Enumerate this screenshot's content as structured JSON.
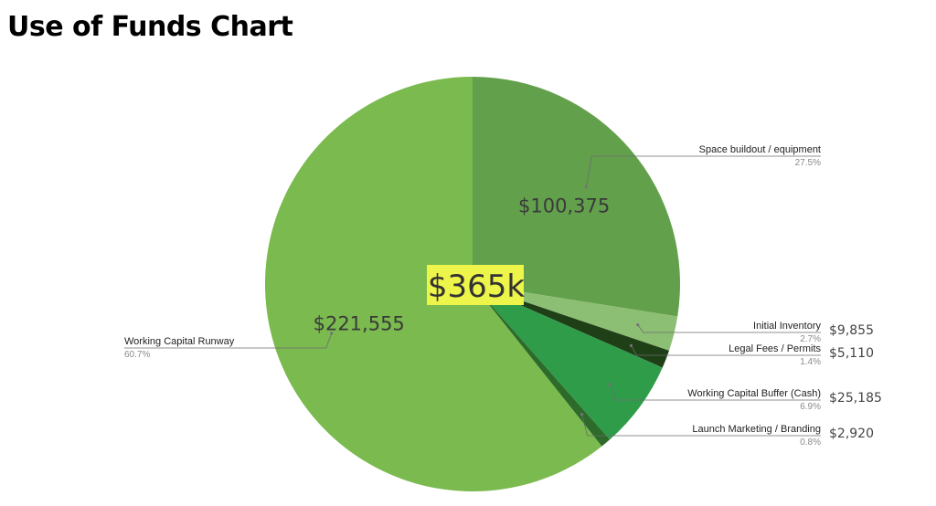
{
  "title": "Use of Funds Chart",
  "chart_data": {
    "type": "pie",
    "center_label": "$365k",
    "center_highlight_color": "#eef54a",
    "slices": [
      {
        "label": "Space buildout / equipment",
        "value": 100375,
        "value_label": "$100,375",
        "percent_label": "27.5%",
        "color": "#63a04c"
      },
      {
        "label": "Initial Inventory",
        "value": 9855,
        "value_label": "$9,855",
        "percent_label": "2.7%",
        "color": "#8cbf74"
      },
      {
        "label": "Legal Fees / Permits",
        "value": 5110,
        "value_label": "$5,110",
        "percent_label": "1.4%",
        "color": "#1f3f17"
      },
      {
        "label": "Working Capital Buffer (Cash)",
        "value": 25185,
        "value_label": "$25,185",
        "percent_label": "6.9%",
        "color": "#2f9c4a"
      },
      {
        "label": "Launch Marketing / Branding",
        "value": 2920,
        "value_label": "$2,920",
        "percent_label": "0.8%",
        "color": "#2c6b2a"
      },
      {
        "label": "Working Capital Runway",
        "value": 221555,
        "value_label": "$221,555",
        "percent_label": "60.7%",
        "color": "#7aba4e"
      }
    ]
  }
}
